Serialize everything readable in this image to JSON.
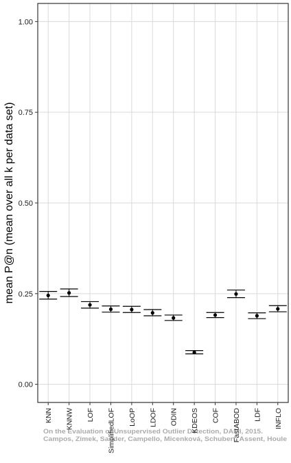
{
  "chart_data": {
    "type": "scatter",
    "title": "",
    "xlabel": "",
    "ylabel": "mean P@n (mean over all k per data set)",
    "ylim": [
      -0.05,
      1.05
    ],
    "yticks": [
      "0.00",
      "0.25",
      "0.50",
      "0.75",
      "1.00"
    ],
    "grid": true,
    "error_bars": true,
    "categories": [
      "KNN",
      "KNNW",
      "LOF",
      "SimplifiedLOF",
      "LoOP",
      "LDOF",
      "ODIN",
      "KDEOS",
      "COF",
      "FastABOD",
      "LDF",
      "INFLO"
    ],
    "series": [
      {
        "values": [
          0.245,
          0.252,
          0.219,
          0.207,
          0.206,
          0.197,
          0.183,
          0.088,
          0.191,
          0.249,
          0.189,
          0.208
        ],
        "lower": [
          0.235,
          0.242,
          0.21,
          0.199,
          0.198,
          0.189,
          0.176,
          0.084,
          0.184,
          0.239,
          0.181,
          0.2
        ],
        "upper": [
          0.256,
          0.263,
          0.228,
          0.216,
          0.215,
          0.206,
          0.191,
          0.093,
          0.198,
          0.26,
          0.197,
          0.217
        ]
      }
    ]
  },
  "watermark": {
    "line1": "On the Evaluation of Unsupervised Outlier Detection, DAMI, 2015.",
    "line2": "Campos, Zimek, Sander, Campello, Micenková, Schubert, Assent, Houle"
  },
  "colors": {
    "panel_border": "#333333",
    "grid": "#d9d9d9",
    "point": "#000000"
  }
}
